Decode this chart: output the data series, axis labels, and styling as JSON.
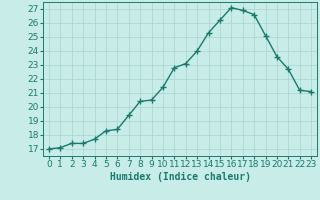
{
  "x": [
    0,
    1,
    2,
    3,
    4,
    5,
    6,
    7,
    8,
    9,
    10,
    11,
    12,
    13,
    14,
    15,
    16,
    17,
    18,
    19,
    20,
    21,
    22,
    23
  ],
  "y": [
    17.0,
    17.1,
    17.4,
    17.4,
    17.7,
    18.3,
    18.4,
    19.4,
    20.4,
    20.5,
    21.4,
    22.8,
    23.1,
    24.0,
    25.3,
    26.2,
    27.1,
    26.9,
    26.6,
    25.1,
    23.6,
    22.7,
    21.2,
    21.1
  ],
  "line_color": "#1a7a6e",
  "marker": "+",
  "marker_size": 4,
  "line_width": 1.0,
  "bg_color": "#c8ece8",
  "grid_color": "#aad4ce",
  "tick_color": "#1a7a6e",
  "xlabel": "Humidex (Indice chaleur)",
  "xlabel_fontsize": 7,
  "tick_fontsize": 6.5,
  "ylim": [
    16.5,
    27.5
  ],
  "yticks": [
    17,
    18,
    19,
    20,
    21,
    22,
    23,
    24,
    25,
    26,
    27
  ],
  "xtick_labels": [
    "0",
    "1",
    "2",
    "3",
    "4",
    "5",
    "6",
    "7",
    "8",
    "9",
    "10",
    "11",
    "12",
    "13",
    "14",
    "15",
    "16",
    "17",
    "18",
    "19",
    "20",
    "21",
    "22",
    "23"
  ]
}
